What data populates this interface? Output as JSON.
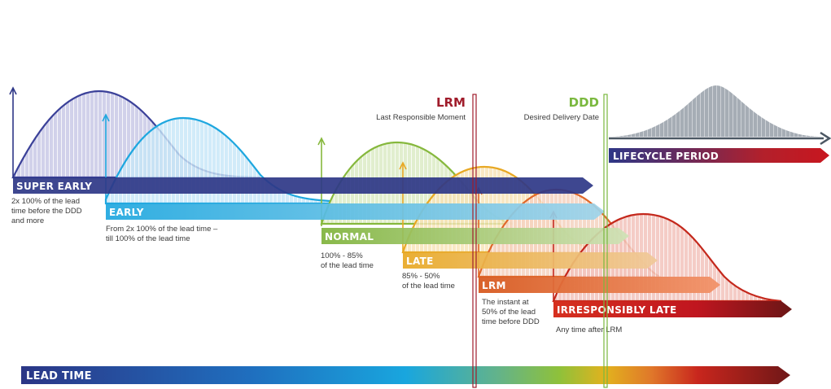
{
  "bands": [
    {
      "id": "super-early",
      "label": "SUPER EARLY",
      "desc": [
        "2x 100% of the lead",
        "time before the DDD",
        "and more"
      ],
      "color": "#2e3787",
      "fill": "#c9c9e6"
    },
    {
      "id": "early",
      "label": "EARLY",
      "desc": [
        "From 2x 100% of the lead time –",
        "till 100% of the lead time"
      ],
      "color": "#1ea7df",
      "fill": "#c6e6f7"
    },
    {
      "id": "normal",
      "label": "NORMAL",
      "desc": [
        "100% - 85%",
        "of the lead time"
      ],
      "color": "#86b83d",
      "fill": "#dcebc6"
    },
    {
      "id": "late",
      "label": "LATE",
      "desc": [
        "85% - 50%",
        "of the lead time"
      ],
      "color": "#e8a823",
      "fill": "#f8e2b4"
    },
    {
      "id": "lrm",
      "label": "LRM",
      "desc": [
        "The instant at",
        "50% of the lead",
        "time before DDD"
      ],
      "color": "#e0682a",
      "fill": "#f5d2bf"
    },
    {
      "id": "irresponsibly-late",
      "label": "IRRESPONSIBLY LATE",
      "desc": [
        "Any time after LRM"
      ],
      "color": "#c4281c",
      "fill": "#f2c3bc"
    }
  ],
  "markers": {
    "lrm": {
      "title": "LRM",
      "subtitle": "Last Responsible Moment",
      "color": "#a01c2b"
    },
    "ddd": {
      "title": "DDD",
      "subtitle": "Desired Delivery Date",
      "color": "#7ab83e"
    }
  },
  "lifecycle": {
    "label": "LIFECYCLE PERIOD",
    "curve_fill": "#a6adb5"
  },
  "lead_time": {
    "label": "LEAD TIME"
  }
}
